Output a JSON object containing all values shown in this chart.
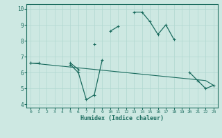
{
  "x_values": [
    0,
    1,
    2,
    3,
    4,
    5,
    6,
    7,
    8,
    9,
    10,
    11,
    12,
    13,
    14,
    15,
    16,
    17,
    18,
    19,
    20,
    21,
    22,
    23
  ],
  "line1": [
    6.6,
    6.6,
    null,
    null,
    null,
    6.6,
    6.2,
    null,
    7.8,
    null,
    8.6,
    8.9,
    null,
    9.8,
    9.8,
    9.2,
    8.4,
    9.0,
    8.1,
    null,
    6.0,
    5.5,
    5.0,
    5.2
  ],
  "line2": [
    6.6,
    null,
    null,
    null,
    null,
    6.5,
    6.0,
    4.3,
    4.6,
    6.8,
    null,
    null,
    null,
    null,
    null,
    null,
    null,
    null,
    null,
    null,
    null,
    null,
    null,
    null
  ],
  "line3": [
    6.6,
    6.55,
    6.5,
    6.45,
    6.4,
    6.35,
    6.3,
    6.25,
    6.2,
    6.15,
    6.1,
    6.05,
    6.0,
    5.95,
    5.9,
    5.85,
    5.8,
    5.75,
    5.7,
    5.65,
    5.6,
    5.55,
    5.5,
    5.2
  ],
  "bg_color": "#cde8e2",
  "line_color": "#1a6b5e",
  "grid_color": "#b0d8d0",
  "xlabel": "Humidex (Indice chaleur)",
  "xlim": [
    -0.5,
    23.5
  ],
  "ylim": [
    3.8,
    10.3
  ],
  "yticks": [
    4,
    5,
    6,
    7,
    8,
    9,
    10
  ],
  "xticks": [
    0,
    1,
    2,
    3,
    4,
    5,
    6,
    7,
    8,
    9,
    10,
    11,
    12,
    13,
    14,
    15,
    16,
    17,
    18,
    19,
    20,
    21,
    22,
    23
  ]
}
